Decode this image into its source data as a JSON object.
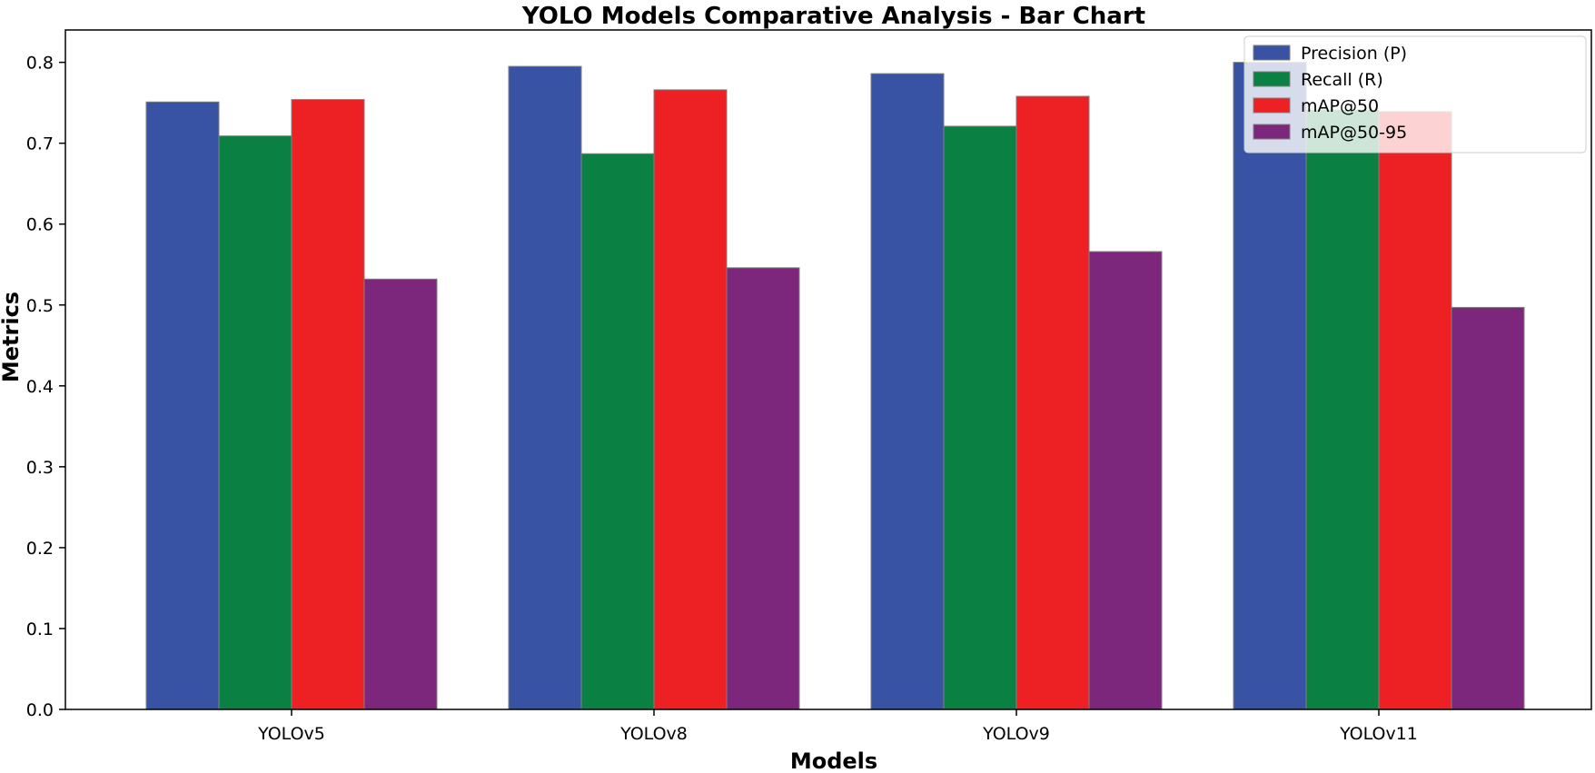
{
  "chart_data": {
    "type": "bar",
    "title": "YOLO Models Comparative Analysis - Bar Chart",
    "xlabel": "Models",
    "ylabel": "Metrics",
    "ylim": [
      0,
      0.84
    ],
    "yticks": [
      "0.0",
      "0.1",
      "0.2",
      "0.3",
      "0.4",
      "0.5",
      "0.6",
      "0.7",
      "0.8"
    ],
    "categories": [
      "YOLOv5",
      "YOLOv8",
      "YOLOv9",
      "YOLOv11"
    ],
    "series": [
      {
        "name": "Precision (P)",
        "color": "#3953a4",
        "values": [
          0.751,
          0.795,
          0.786,
          0.8
        ]
      },
      {
        "name": "Recall (R)",
        "color": "#0b8043",
        "values": [
          0.709,
          0.687,
          0.721,
          0.741
        ]
      },
      {
        "name": "mAP@50",
        "color": "#ed2024",
        "values": [
          0.754,
          0.766,
          0.758,
          0.739
        ]
      },
      {
        "name": "mAP@50-95",
        "color": "#7d277c",
        "values": [
          0.532,
          0.546,
          0.566,
          0.497
        ]
      }
    ],
    "legend_position": "top-right",
    "grid": false
  }
}
